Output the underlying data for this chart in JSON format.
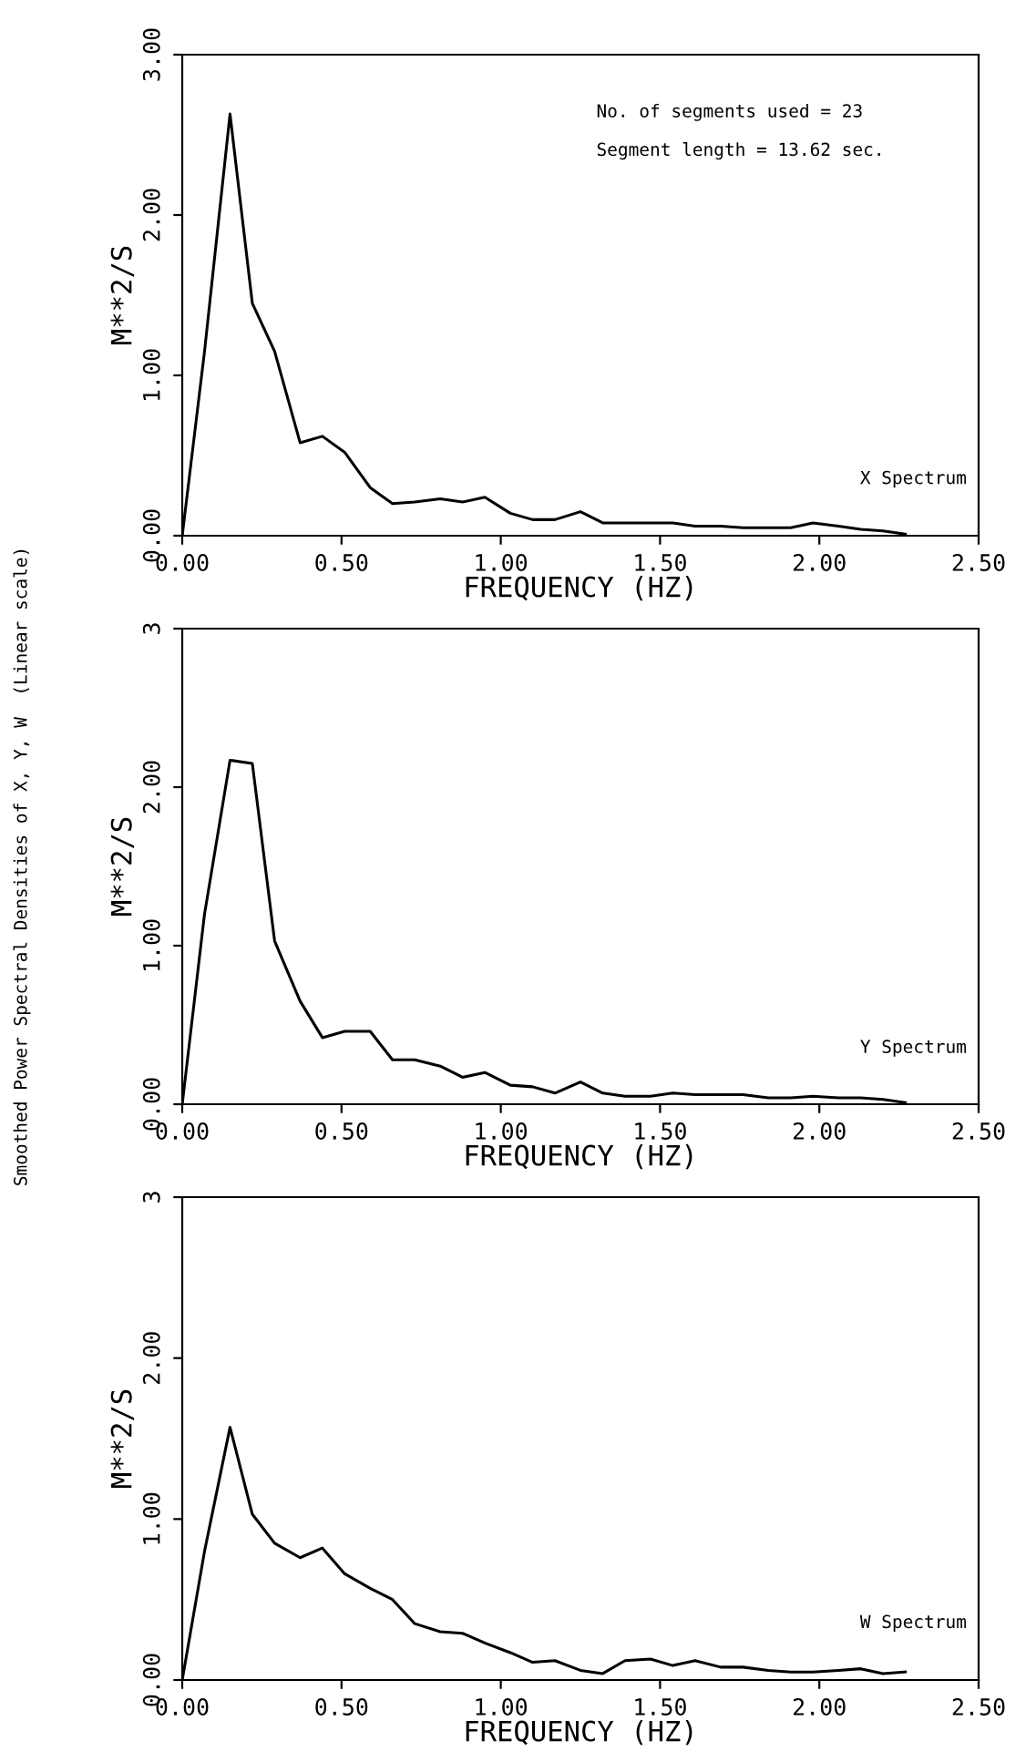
{
  "chart_data": [
    {
      "type": "line",
      "xlabel": "FREQUENCY (HZ)",
      "ylabel": "M**2/S",
      "x": [
        0,
        0.07,
        0.15,
        0.22,
        0.29,
        0.37,
        0.44,
        0.51,
        0.59,
        0.66,
        0.73,
        0.81,
        0.88,
        0.95,
        1.03,
        1.1,
        1.17,
        1.25,
        1.32,
        1.39,
        1.47,
        1.54,
        1.61,
        1.69,
        1.76,
        1.84,
        1.91,
        1.98,
        2.06,
        2.13,
        2.2,
        2.27
      ],
      "series": [
        {
          "name": "X Spectrum",
          "color": "#000000",
          "values": [
            0,
            1.15,
            2.63,
            1.45,
            1.15,
            0.58,
            0.62,
            0.52,
            0.3,
            0.2,
            0.21,
            0.23,
            0.21,
            0.24,
            0.14,
            0.1,
            0.1,
            0.15,
            0.08,
            0.08,
            0.08,
            0.08,
            0.06,
            0.06,
            0.05,
            0.05,
            0.05,
            0.08,
            0.06,
            0.04,
            0.03,
            0.01
          ]
        }
      ],
      "xlim": [
        0,
        2.5
      ],
      "ylim": [
        0,
        3
      ],
      "xticks": [
        {
          "value": 0,
          "label": "0.00"
        },
        {
          "value": 0.5,
          "label": "0.50"
        },
        {
          "value": 1,
          "label": "1.00"
        },
        {
          "value": 1.5,
          "label": "1.50"
        },
        {
          "value": 2,
          "label": "2.00"
        },
        {
          "value": 2.5,
          "label": "2.50"
        }
      ],
      "yticks": [
        {
          "value": 0,
          "label": "0.00"
        },
        {
          "value": 1,
          "label": "1.00"
        },
        {
          "value": 2,
          "label": "2.00"
        },
        {
          "value": 3,
          "label": "3.00"
        }
      ],
      "annotations": [
        "No. of segments used = 23",
        "Segment length = 13.62 sec."
      ]
    },
    {
      "type": "line",
      "xlabel": "FREQUENCY (HZ)",
      "ylabel": "M**2/S",
      "x": [
        0,
        0.07,
        0.15,
        0.22,
        0.29,
        0.37,
        0.44,
        0.51,
        0.59,
        0.66,
        0.73,
        0.81,
        0.88,
        0.95,
        1.03,
        1.1,
        1.17,
        1.25,
        1.32,
        1.39,
        1.47,
        1.54,
        1.61,
        1.69,
        1.76,
        1.84,
        1.91,
        1.98,
        2.06,
        2.13,
        2.2,
        2.27
      ],
      "series": [
        {
          "name": "Y Spectrum",
          "color": "#000000",
          "values": [
            0,
            1.2,
            2.17,
            2.15,
            1.03,
            0.65,
            0.42,
            0.46,
            0.46,
            0.28,
            0.28,
            0.24,
            0.17,
            0.2,
            0.12,
            0.11,
            0.07,
            0.14,
            0.07,
            0.05,
            0.05,
            0.07,
            0.06,
            0.06,
            0.06,
            0.04,
            0.04,
            0.05,
            0.04,
            0.04,
            0.03,
            0.01
          ]
        }
      ],
      "xlim": [
        0,
        2.5
      ],
      "ylim": [
        0,
        3
      ],
      "xticks": [
        {
          "value": 0,
          "label": "0.00"
        },
        {
          "value": 0.5,
          "label": "0.50"
        },
        {
          "value": 1,
          "label": "1.00"
        },
        {
          "value": 1.5,
          "label": "1.50"
        },
        {
          "value": 2,
          "label": "2.00"
        },
        {
          "value": 2.5,
          "label": "2.50"
        }
      ],
      "yticks": [
        {
          "value": 0,
          "label": "0.00"
        },
        {
          "value": 1,
          "label": "1.00"
        },
        {
          "value": 2,
          "label": "2.00"
        },
        3
      ],
      "annotations": [
        "Smoothed Power Spectral Densities of X, Y, W  (Linear scale)"
      ]
    },
    {
      "type": "line",
      "xlabel": "FREQUENCY (HZ)",
      "ylabel": "M**2/S",
      "x": [
        0,
        0.07,
        0.15,
        0.22,
        0.29,
        0.37,
        0.44,
        0.51,
        0.59,
        0.66,
        0.73,
        0.81,
        0.88,
        0.95,
        1.03,
        1.1,
        1.17,
        1.25,
        1.32,
        1.39,
        1.47,
        1.54,
        1.61,
        1.69,
        1.76,
        1.84,
        1.91,
        1.98,
        2.06,
        2.13,
        2.2,
        2.27
      ],
      "series": [
        {
          "name": "W Spectrum",
          "color": "#000000",
          "values": [
            0,
            0.8,
            1.57,
            1.03,
            0.85,
            0.76,
            0.82,
            0.66,
            0.57,
            0.5,
            0.35,
            0.3,
            0.29,
            0.23,
            0.17,
            0.11,
            0.12,
            0.06,
            0.04,
            0.12,
            0.13,
            0.09,
            0.12,
            0.08,
            0.08,
            0.06,
            0.05,
            0.05,
            0.06,
            0.07,
            0.04,
            0.05
          ]
        }
      ],
      "xlim": [
        0,
        2.5
      ],
      "ylim": [
        0,
        3
      ],
      "xticks": [
        {
          "value": 0,
          "label": "0.00"
        },
        {
          "value": 0.5,
          "label": "0.50"
        },
        {
          "value": 1,
          "label": "1.00"
        },
        {
          "value": 1.5,
          "label": "1.50"
        },
        {
          "value": 2,
          "label": "2.00"
        },
        {
          "value": 2.5,
          "label": "2.50"
        }
      ],
      "yticks": [
        {
          "value": 0,
          "label": "0.00"
        },
        {
          "value": 1,
          "label": "1.00"
        },
        {
          "value": 2,
          "label": "2.00"
        },
        3
      ]
    }
  ]
}
